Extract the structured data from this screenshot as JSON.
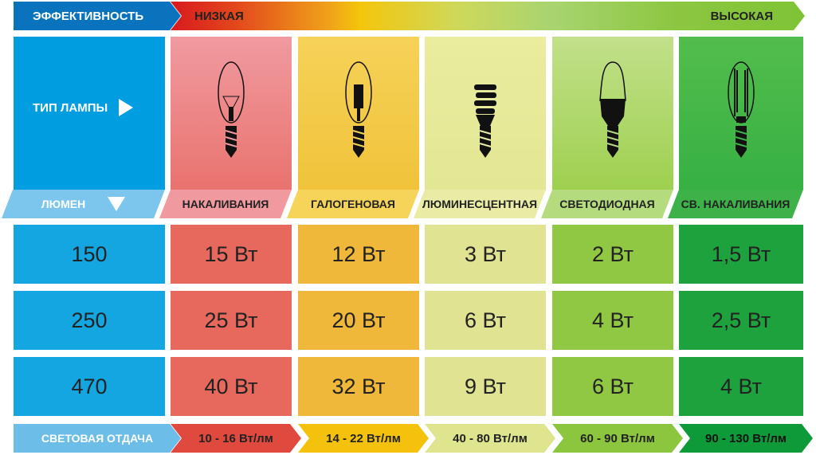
{
  "header": {
    "efficiency_label": "ЭФФЕКТИВНОСТЬ",
    "low": "НИЗКАЯ",
    "high": "ВЫСОКАЯ"
  },
  "left": {
    "lamp_type_label": "ТИП ЛАМПЫ",
    "lumen_label": "ЛЮМЕН",
    "efficacy_label": "СВЕТОВАЯ ОТДАЧА",
    "lumens": [
      "150",
      "250",
      "470"
    ]
  },
  "lamps": [
    {
      "name": "НАКАЛИВАНИЯ",
      "icon": "incandescent-bulb-icon",
      "watts": [
        "15 Вт",
        "25 Вт",
        "40 Вт"
      ],
      "efficacy": "10 - 16 Вт/лм",
      "color": "#e04a3e"
    },
    {
      "name": "ГАЛОГЕНОВАЯ",
      "icon": "halogen-bulb-icon",
      "watts": [
        "12 Вт",
        "20 Вт",
        "32 Вт"
      ],
      "efficacy": "14 - 22 Вт/лм",
      "color": "#f4c20c"
    },
    {
      "name": "ЛЮМИНЕСЦЕНТНАЯ",
      "icon": "fluorescent-bulb-icon",
      "watts": [
        "3 Вт",
        "6 Вт",
        "9 Вт"
      ],
      "efficacy": "40 - 80 Вт/лм",
      "color": "#dfe48e"
    },
    {
      "name": "СВЕТОДИОДНАЯ",
      "icon": "led-bulb-icon",
      "watts": [
        "2 Вт",
        "4 Вт",
        "6 Вт"
      ],
      "efficacy": "60 - 90 Вт/лм",
      "color": "#8cc63e"
    },
    {
      "name": "СВ. НАКАЛИВАНИЯ",
      "icon": "filament-led-bulb-icon",
      "watts": [
        "1,5 Вт",
        "2,5 Вт",
        "4 Вт"
      ],
      "efficacy": "90 - 130 Вт/лм",
      "color": "#0f9a3a"
    }
  ]
}
